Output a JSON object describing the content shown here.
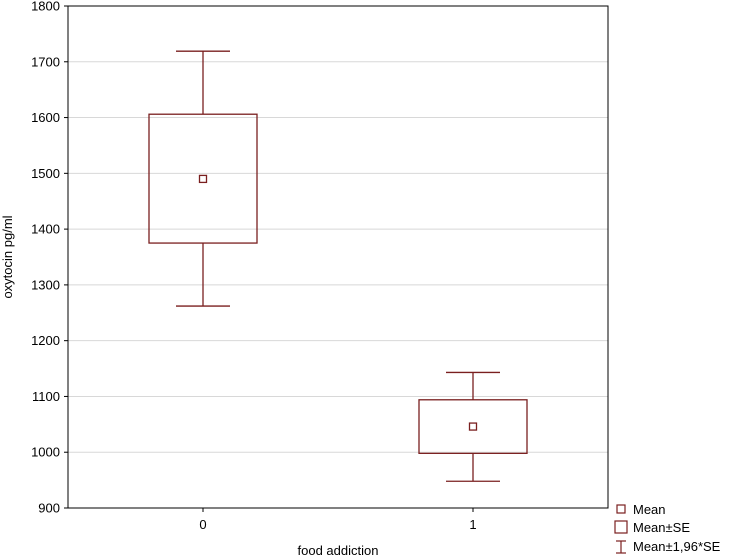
{
  "chart_data": {
    "type": "box",
    "title": "",
    "xlabel": "food addiction",
    "ylabel": "oxytocin pg/ml",
    "ylim": [
      900,
      1800
    ],
    "yticks": [
      900,
      1000,
      1100,
      1200,
      1300,
      1400,
      1500,
      1600,
      1700,
      1800
    ],
    "grid": true,
    "legend_position": "bottom-right",
    "color": "#7a1f1f",
    "categories": [
      "0",
      "1"
    ],
    "groups": [
      {
        "category": "0",
        "mean": 1490,
        "se_low": 1375,
        "se_high": 1606,
        "ci_low": 1262,
        "ci_high": 1719
      },
      {
        "category": "1",
        "mean": 1046,
        "se_low": 998,
        "se_high": 1094,
        "ci_low": 948,
        "ci_high": 1143
      }
    ],
    "legend": [
      "Mean",
      "Mean±SE",
      "Mean±1,96*SE"
    ]
  }
}
